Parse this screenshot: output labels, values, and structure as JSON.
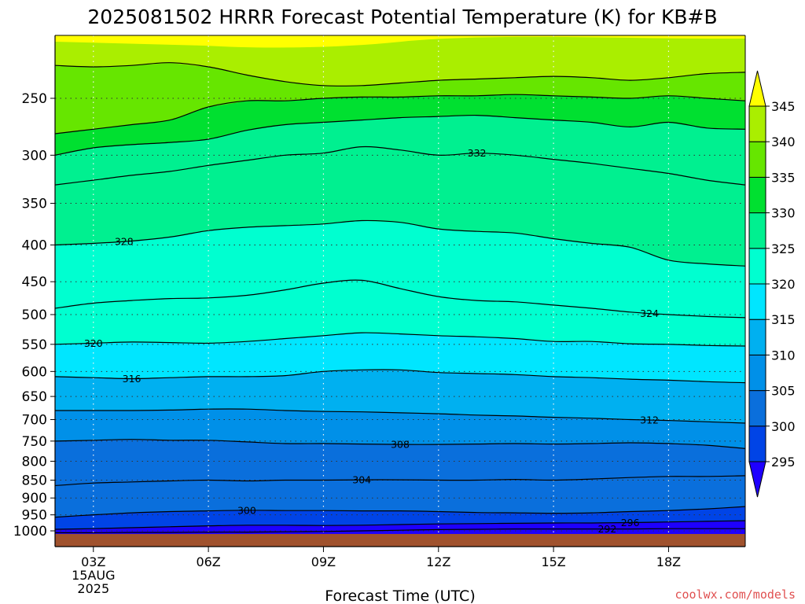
{
  "title": "2025081502 HRRR Forecast Potential Temperature (K) for KB#B",
  "credit": "coolwx.com/models",
  "credit_color": "#e05050",
  "ground_color": "#a0522d",
  "chart_data": {
    "type": "contour",
    "title": "2025081502 HRRR Forecast Potential Temperature (K) for KB#B",
    "xlabel": "Forecast Time (UTC)",
    "ylabel": "",
    "x_range": [
      2,
      20
    ],
    "y_range_hpa": [
      1015,
      200
    ],
    "y_scale": "log",
    "y_ticks": [
      250,
      300,
      350,
      400,
      450,
      500,
      550,
      600,
      650,
      700,
      750,
      800,
      850,
      900,
      950,
      1000
    ],
    "x_ticks": [
      {
        "hour": 3,
        "label": "03Z",
        "sublabel": [
          "15AUG",
          "2025"
        ]
      },
      {
        "hour": 6,
        "label": "06Z"
      },
      {
        "hour": 9,
        "label": "09Z"
      },
      {
        "hour": 12,
        "label": "12Z"
      },
      {
        "hour": 15,
        "label": "15Z"
      },
      {
        "hour": 18,
        "label": "18Z"
      }
    ],
    "grid": "dotted",
    "colorbar": {
      "boundaries": [
        295,
        300,
        305,
        310,
        315,
        320,
        325,
        330,
        335,
        340,
        345
      ],
      "labels": [
        "295",
        "300",
        "305",
        "310",
        "315",
        "320",
        "325",
        "330",
        "335",
        "340",
        "345"
      ],
      "colors": [
        "#1e00ff",
        "#0044e6",
        "#0a6fdc",
        "#0090e8",
        "#00b0f0",
        "#00e6ff",
        "#00ffd0",
        "#00f090",
        "#00e030",
        "#66e600",
        "#aaee00",
        "#ffff00"
      ],
      "extend": "both"
    },
    "hours": [
      2,
      3,
      4,
      5,
      6,
      7,
      8,
      9,
      10,
      11,
      12,
      13,
      14,
      15,
      16,
      17,
      18,
      19,
      20
    ],
    "isentropes": [
      {
        "theta": 292,
        "label_hour": 16.4,
        "pressures": [
          1006,
          1006,
          1005,
          1005,
          1004,
          1004,
          1003,
          1002,
          1000,
          998,
          996,
          995,
          994,
          994,
          994,
          994,
          993,
          993,
          993
        ]
      },
      {
        "theta": 296,
        "label_hour": 17,
        "pressures": [
          995,
          993,
          990,
          987,
          984,
          982,
          982,
          983,
          982,
          980,
          978,
          977,
          976,
          975,
          975,
          974,
          972,
          970,
          968
        ]
      },
      {
        "theta": 300,
        "label_hour": 7,
        "pressures": [
          957,
          950,
          944,
          940,
          938,
          936,
          937,
          937,
          938,
          938,
          940,
          943,
          944,
          945,
          944,
          940,
          937,
          932,
          925
        ]
      },
      {
        "theta": 304,
        "label_hour": 10,
        "pressures": [
          865,
          858,
          855,
          852,
          850,
          852,
          850,
          850,
          849,
          849,
          850,
          850,
          848,
          850,
          847,
          843,
          840,
          840,
          838
        ]
      },
      {
        "theta": 308,
        "label_hour": 11,
        "pressures": [
          750,
          748,
          746,
          748,
          748,
          752,
          756,
          756,
          757,
          758,
          758,
          757,
          756,
          757,
          756,
          754,
          756,
          760,
          768
        ]
      },
      {
        "theta": 312,
        "label_hour": 17.5,
        "pressures": [
          680,
          680,
          680,
          679,
          677,
          677,
          680,
          682,
          683,
          685,
          687,
          690,
          692,
          695,
          697,
          700,
          702,
          705,
          708
        ]
      },
      {
        "theta": 316,
        "label_hour": 4,
        "pressures": [
          610,
          612,
          614,
          612,
          610,
          610,
          608,
          600,
          597,
          597,
          602,
          604,
          606,
          610,
          612,
          615,
          617,
          620,
          622
        ]
      },
      {
        "theta": 320,
        "label_hour": 3,
        "pressures": [
          550,
          548,
          546,
          547,
          548,
          545,
          540,
          535,
          530,
          532,
          535,
          537,
          540,
          545,
          545,
          549,
          550,
          552,
          553
        ]
      },
      {
        "theta": 324,
        "label_hour": 17.5,
        "pressures": [
          490,
          482,
          478,
          475,
          474,
          470,
          462,
          452,
          448,
          460,
          472,
          478,
          480,
          485,
          490,
          496,
          500,
          503,
          505
        ]
      },
      {
        "theta": 328,
        "label_hour": 3.8,
        "pressures": [
          400,
          398,
          395,
          390,
          382,
          378,
          376,
          374,
          370,
          372,
          380,
          383,
          385,
          392,
          398,
          403,
          420,
          425,
          428
        ]
      },
      {
        "theta": 332,
        "label_hour": 13,
        "pressures": [
          330,
          325,
          320,
          316,
          310,
          305,
          300,
          298,
          292,
          295,
          300,
          298,
          300,
          304,
          308,
          313,
          318,
          325,
          330
        ]
      },
      {
        "theta": 336,
        "label_hour": null,
        "pressures": [
          300,
          293,
          290,
          288,
          285,
          277,
          272,
          270,
          268,
          266,
          265,
          264,
          266,
          268,
          270,
          274,
          270,
          275,
          276
        ]
      },
      {
        "theta": 340,
        "label_hour": null,
        "pressures": [
          280,
          276,
          272,
          268,
          257,
          252,
          252,
          250,
          249,
          249,
          248,
          248,
          247,
          248,
          249,
          250,
          248,
          250,
          252
        ]
      },
      {
        "theta": 344,
        "label_hour": null,
        "pressures": [
          225,
          226,
          225,
          223,
          226,
          232,
          237,
          240,
          240,
          238,
          236,
          235,
          234,
          233,
          234,
          236,
          234,
          231,
          230
        ]
      }
    ]
  }
}
